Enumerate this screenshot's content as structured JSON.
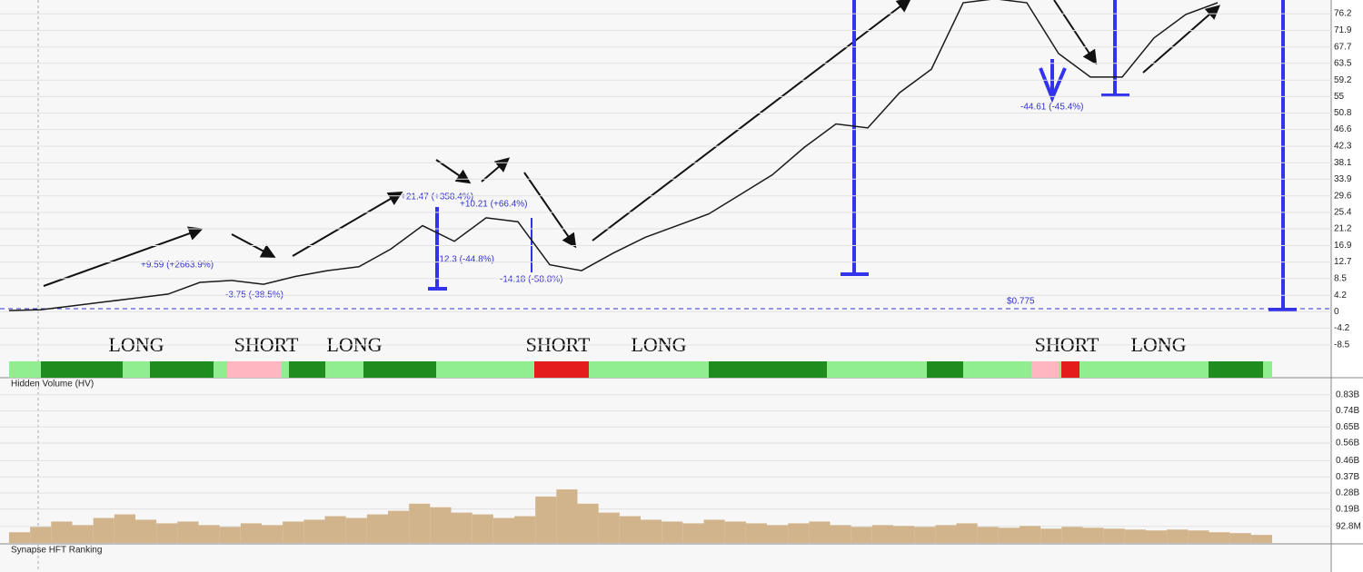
{
  "chart_data": [
    {
      "type": "line",
      "color": "#1a1a1a",
      "values": [
        0.3,
        0.5,
        1.5,
        2.5,
        3.5,
        4.5,
        7.5,
        8,
        7,
        9,
        10.5,
        11.5,
        16,
        22,
        18,
        24,
        23,
        12,
        10.5,
        15,
        19,
        22,
        25,
        30,
        35,
        42,
        48,
        47,
        56,
        62,
        79,
        80,
        79,
        66,
        60,
        60,
        70,
        76,
        79
      ],
      "ylim": [
        -12,
        79.7
      ],
      "yticks": [
        76.2,
        71.9,
        67.7,
        63.5,
        59.2,
        55,
        50.8,
        46.6,
        42.3,
        38.1,
        33.9,
        29.6,
        25.4,
        21.2,
        16.9,
        12.7,
        8.5,
        4.2,
        0,
        -4.2,
        -8.5
      ],
      "grid": true,
      "reference_line": {
        "value": 0.775,
        "label": "$0.775"
      },
      "annotations": [
        "+9.59 (+2663.9%)",
        "-3.75 (-38.5%)",
        "+21.47 (+358.4%)",
        "-12.3 (-44.8%)",
        "+10.21 (+66.4%)",
        "-14.18 (-58.8%)",
        "-44.61 (-45.4%)"
      ],
      "regimes": [
        "LONG",
        "SHORT",
        "LONG",
        "SHORT",
        "LONG",
        "SHORT",
        "LONG"
      ]
    },
    {
      "type": "bar",
      "title": "Hidden Volume (HV)",
      "color": "#d2b48c",
      "values": [
        60000000,
        90000000,
        120000000,
        100000000,
        140000000,
        160000000,
        130000000,
        110000000,
        120000000,
        100000000,
        90000000,
        110000000,
        100000000,
        120000000,
        130000000,
        150000000,
        140000000,
        160000000,
        180000000,
        220000000,
        200000000,
        170000000,
        160000000,
        140000000,
        150000000,
        260000000,
        300000000,
        220000000,
        170000000,
        150000000,
        130000000,
        120000000,
        110000000,
        130000000,
        120000000,
        110000000,
        100000000,
        110000000,
        120000000,
        100000000,
        90000000,
        100000000,
        95000000,
        90000000,
        100000000,
        110000000,
        90000000,
        85000000,
        95000000,
        80000000,
        90000000,
        85000000,
        80000000,
        75000000,
        70000000,
        75000000,
        70000000,
        60000000,
        55000000,
        45000000
      ],
      "ylim": [
        0,
        916000000
      ],
      "yticks": [
        {
          "value": 830000000,
          "label": "0.83B"
        },
        {
          "value": 740000000,
          "label": "0.74B"
        },
        {
          "value": 650000000,
          "label": "0.65B"
        },
        {
          "value": 560000000,
          "label": "0.56B"
        },
        {
          "value": 460000000,
          "label": "0.46B"
        },
        {
          "value": 370000000,
          "label": "0.37B"
        },
        {
          "value": 280000000,
          "label": "0.28B"
        },
        {
          "value": 190000000,
          "label": "0.19B"
        },
        {
          "value": 92800000,
          "label": "92.8M"
        }
      ]
    },
    {
      "type": "panel",
      "title": "Synapse HFT Ranking"
    }
  ]
}
